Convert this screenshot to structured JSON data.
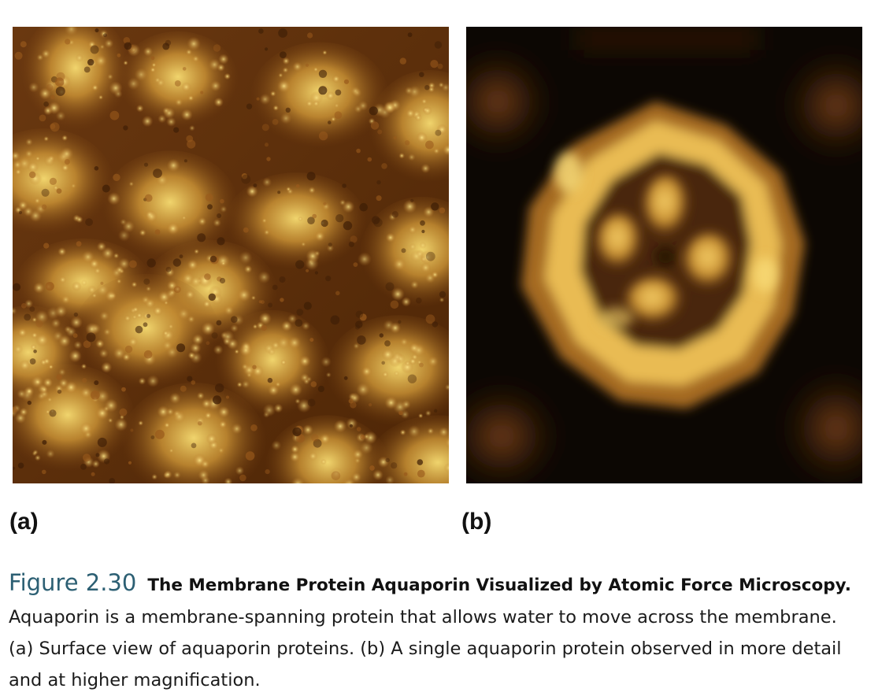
{
  "figure": {
    "number": "Figure 2.30",
    "title": "The Membrane Protein Aquaporin Visualized by Atomic Force Microscopy.",
    "caption_lines": [
      "Aquaporin is a membrane-spanning protein that allows water to move across the membrane.",
      "(a) Surface view of aquaporin proteins. (b) A single aquaporin protein observed in more detail",
      "and at higher magnification."
    ]
  },
  "panels": {
    "a": {
      "label": "(a)",
      "image": "afm-surface-aquaporin-lattice"
    },
    "b": {
      "label": "(b)",
      "image": "afm-single-aquaporin-tetramer"
    }
  },
  "colors": {
    "afm_bright": "#f8dd72",
    "afm_mid": "#c58a2a",
    "afm_dark": "#5a2c08",
    "afm_background_b": "#0c0703",
    "figure_number": "#2c5f73"
  }
}
